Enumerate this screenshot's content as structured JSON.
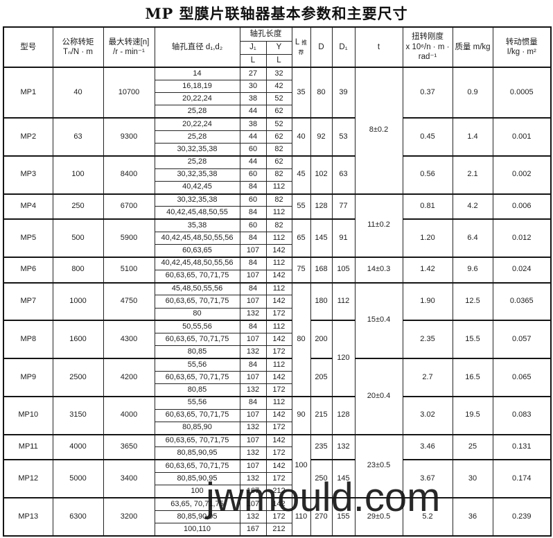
{
  "title": "MP 型膜片联轴器基本参数和主要尺寸",
  "watermark": "jwmould.com",
  "header": {
    "model": "型号",
    "torque": "公称转矩\nTₙ/N · m",
    "speed": "最大转速[n]\n/r - min⁻¹",
    "bore_diameter": "轴孔直径 d₁,d₂",
    "bore_length": "轴孔长度",
    "j1": "J₁",
    "y": "Y",
    "l": "L",
    "l_rec_main": "L ",
    "l_rec_sub": "推荐",
    "d": "D",
    "d1": "D₁",
    "t": "t",
    "stiffness": "扭转刚度\nx 10⁶/n · m ·\nrad⁻¹",
    "mass": "质量  m/kg",
    "inertia": "转动惯量\nI/kg · m²"
  },
  "models": [
    {
      "model": "MP1",
      "torque": "40",
      "speed": "10700",
      "bores": [
        [
          "14",
          "27",
          "32"
        ],
        [
          "16,18,19",
          "30",
          "42"
        ],
        [
          "20,22,24",
          "38",
          "52"
        ],
        [
          "25,28",
          "44",
          "62"
        ]
      ],
      "l_rec": {
        "v": "35",
        "span": 4
      },
      "d": {
        "v": "80",
        "span": 4
      },
      "d1": {
        "v": "39",
        "span": 4
      },
      "t": {
        "v": "8±0.2",
        "span": 10
      },
      "stiffness": "0.37",
      "mass": "0.9",
      "inertia": "0.0005"
    },
    {
      "model": "MP2",
      "torque": "63",
      "speed": "9300",
      "bores": [
        [
          "20,22,24",
          "38",
          "52"
        ],
        [
          "25,28",
          "44",
          "62"
        ],
        [
          "30,32,35,38",
          "60",
          "82"
        ]
      ],
      "l_rec": {
        "v": "40",
        "span": 3
      },
      "d": {
        "v": "92",
        "span": 3
      },
      "d1": {
        "v": "53",
        "span": 3
      },
      "stiffness": "0.45",
      "mass": "1.4",
      "inertia": "0.001"
    },
    {
      "model": "MP3",
      "torque": "100",
      "speed": "8400",
      "bores": [
        [
          "25,28",
          "44",
          "62"
        ],
        [
          "30,32,35,38",
          "60",
          "82"
        ],
        [
          "40,42,45",
          "84",
          "112"
        ]
      ],
      "l_rec": {
        "v": "45",
        "span": 3
      },
      "d": {
        "v": "102",
        "span": 3
      },
      "d1": {
        "v": "63",
        "span": 3
      },
      "stiffness": "0.56",
      "mass": "2.1",
      "inertia": "0.002"
    },
    {
      "model": "MP4",
      "torque": "250",
      "speed": "6700",
      "bores": [
        [
          "30,32,35,38",
          "60",
          "82"
        ],
        [
          "40,42,45,48,50,55",
          "84",
          "112"
        ]
      ],
      "l_rec": {
        "v": "55",
        "span": 2
      },
      "d": {
        "v": "128",
        "span": 2
      },
      "d1": {
        "v": "77",
        "span": 2
      },
      "t": {
        "v": "11±0.2",
        "span": 5
      },
      "stiffness": "0.81",
      "mass": "4.2",
      "inertia": "0.006"
    },
    {
      "model": "MP5",
      "torque": "500",
      "speed": "5900",
      "bores": [
        [
          "35,38",
          "60",
          "82"
        ],
        [
          "40,42,45,48,50,55,56",
          "84",
          "112"
        ],
        [
          "60,63,65",
          "107",
          "142"
        ]
      ],
      "l_rec": {
        "v": "65",
        "span": 3
      },
      "d": {
        "v": "145",
        "span": 3
      },
      "d1": {
        "v": "91",
        "span": 3
      },
      "stiffness": "1.20",
      "mass": "6.4",
      "inertia": "0.012"
    },
    {
      "model": "MP6",
      "torque": "800",
      "speed": "5100",
      "bores": [
        [
          "40,42,45,48,50,55,56",
          "84",
          "112"
        ],
        [
          "60,63,65, 70,71,75",
          "107",
          "142"
        ]
      ],
      "l_rec": {
        "v": "75",
        "span": 2
      },
      "d": {
        "v": "168",
        "span": 2
      },
      "d1": {
        "v": "105",
        "span": 2
      },
      "t": {
        "v": "14±0.3",
        "span": 2
      },
      "stiffness": "1.42",
      "mass": "9.6",
      "inertia": "0.024"
    },
    {
      "model": "MP7",
      "torque": "1000",
      "speed": "4750",
      "bores": [
        [
          "45,48,50,55,56",
          "84",
          "112"
        ],
        [
          "60,63,65, 70,71,75",
          "107",
          "142"
        ],
        [
          "80",
          "132",
          "172"
        ]
      ],
      "l_rec": {
        "v": "80",
        "span": 9
      },
      "d": {
        "v": "180",
        "span": 3
      },
      "d1": {
        "v": "112",
        "span": 3
      },
      "t": {
        "v": "15±0.4",
        "span": 6
      },
      "stiffness": "1.90",
      "mass": "12.5",
      "inertia": "0.0365"
    },
    {
      "model": "MP8",
      "torque": "1600",
      "speed": "4300",
      "bores": [
        [
          "50,55,56",
          "84",
          "112"
        ],
        [
          "60,63,65, 70,71,75",
          "107",
          "142"
        ],
        [
          "80,85",
          "132",
          "172"
        ]
      ],
      "d": {
        "v": "200",
        "span": 3
      },
      "d1": {
        "v": "120",
        "span": 6
      },
      "stiffness": "2.35",
      "mass": "15.5",
      "inertia": "0.057"
    },
    {
      "model": "MP9",
      "torque": "2500",
      "speed": "4200",
      "bores": [
        [
          "55,56",
          "84",
          "112"
        ],
        [
          "60,63,65, 70,71,75",
          "107",
          "142"
        ],
        [
          "80,85",
          "132",
          "172"
        ]
      ],
      "d": {
        "v": "205",
        "span": 3
      },
      "t": {
        "v": "20±0.4",
        "span": 6
      },
      "stiffness": "2.7",
      "mass": "16.5",
      "inertia": "0.065"
    },
    {
      "model": "MP10",
      "torque": "3150",
      "speed": "4000",
      "bores": [
        [
          "55,56",
          "84",
          "112"
        ],
        [
          "60,63,65, 70,71,75",
          "107",
          "142"
        ],
        [
          "80,85,90",
          "132",
          "172"
        ]
      ],
      "l_rec": {
        "v": "90",
        "span": 3
      },
      "d": {
        "v": "215",
        "span": 3
      },
      "d1": {
        "v": "128",
        "span": 3
      },
      "stiffness": "3.02",
      "mass": "19.5",
      "inertia": "0.083"
    },
    {
      "model": "MP11",
      "torque": "4000",
      "speed": "3650",
      "bores": [
        [
          "60,63,65, 70,71,75",
          "107",
          "142"
        ],
        [
          "80,85,90,95",
          "132",
          "172"
        ]
      ],
      "l_rec": {
        "v": "100",
        "span": 5
      },
      "d": {
        "v": "235",
        "span": 2
      },
      "d1": {
        "v": "132",
        "span": 2
      },
      "t": {
        "v": "23±0.5",
        "span": 5
      },
      "stiffness": "3.46",
      "mass": "25",
      "inertia": "0.131"
    },
    {
      "model": "MP12",
      "torque": "5000",
      "speed": "3400",
      "bores": [
        [
          "60,63,65, 70,71,75",
          "107",
          "142"
        ],
        [
          "80,85,90,95",
          "132",
          "172"
        ],
        [
          "100",
          "167",
          "212"
        ]
      ],
      "d": {
        "v": "250",
        "span": 3
      },
      "d1": {
        "v": "145",
        "span": 3
      },
      "stiffness": "3.67",
      "mass": "30",
      "inertia": "0.174"
    },
    {
      "model": "MP13",
      "torque": "6300",
      "speed": "3200",
      "bores": [
        [
          "63,65, 70,71,75",
          "107",
          "142"
        ],
        [
          "80,85,90,95",
          "132",
          "172"
        ],
        [
          "100,110",
          "167",
          "212"
        ]
      ],
      "l_rec": {
        "v": "110",
        "span": 3
      },
      "d": {
        "v": "270",
        "span": 3
      },
      "d1": {
        "v": "155",
        "span": 3
      },
      "t": {
        "v": "29±0.5",
        "span": 3
      },
      "stiffness": "5.2",
      "mass": "36",
      "inertia": "0.239"
    }
  ]
}
